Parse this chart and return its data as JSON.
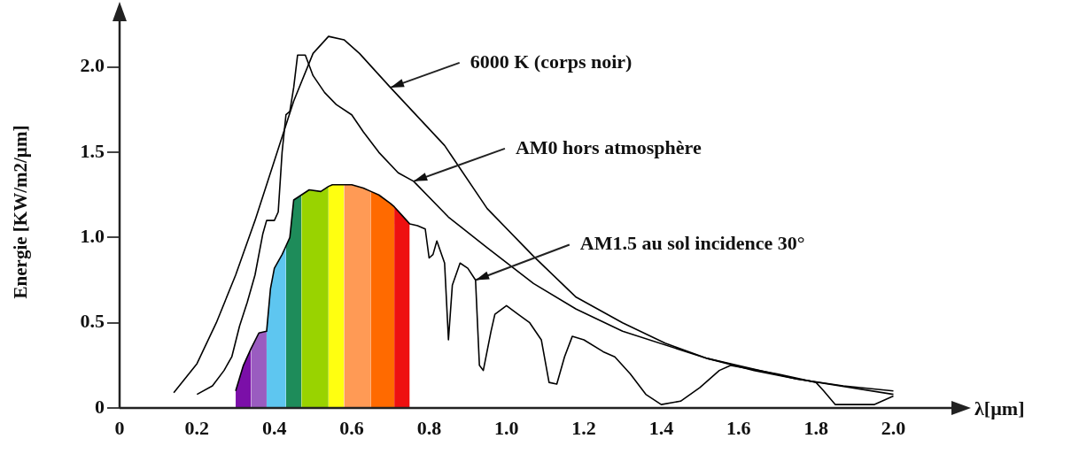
{
  "chart_data": {
    "type": "line",
    "xlabel": "λ[µm]",
    "ylabel": "Energie [KW/m2/µm]",
    "xlim": [
      0,
      2.15
    ],
    "ylim": [
      0,
      2.3
    ],
    "xticks": [
      0,
      0.2,
      0.4,
      0.6,
      0.8,
      {
        "value": 1,
        "label": "1.0"
      },
      1.2,
      1.4,
      1.6,
      1.8,
      {
        "value": 2,
        "label": "2.0"
      }
    ],
    "yticks": [
      0,
      0.5,
      {
        "value": 1,
        "label": "1.0"
      },
      1.5,
      {
        "value": 2,
        "label": "2.0"
      }
    ],
    "series": [
      {
        "color": "#000000",
        "x": [
          0.14,
          0.2,
          0.25,
          0.3,
          0.35,
          0.4,
          0.45,
          0.5,
          0.54,
          0.58,
          0.62,
          0.7,
          0.84,
          0.95,
          1.07,
          1.18,
          1.3,
          1.41,
          1.52,
          1.64,
          1.75,
          1.87,
          2.0
        ],
        "values": [
          0.09,
          0.26,
          0.5,
          0.78,
          1.1,
          1.45,
          1.8,
          2.08,
          2.18,
          2.16,
          2.08,
          1.88,
          1.54,
          1.17,
          0.89,
          0.65,
          0.5,
          0.38,
          0.29,
          0.22,
          0.17,
          0.13,
          0.1
        ]
      },
      {
        "color": "#000000",
        "x": [
          0.2,
          0.24,
          0.27,
          0.29,
          0.31,
          0.33,
          0.35,
          0.37,
          0.38,
          0.4,
          0.41,
          0.42,
          0.43,
          0.44,
          0.45,
          0.46,
          0.48,
          0.5,
          0.53,
          0.56,
          0.6,
          0.63,
          0.67,
          0.72,
          0.76,
          0.85,
          0.95,
          1.07,
          1.18,
          1.3,
          1.52,
          1.75,
          2.0
        ],
        "values": [
          0.08,
          0.13,
          0.22,
          0.3,
          0.48,
          0.62,
          0.78,
          1.02,
          1.1,
          1.1,
          1.15,
          1.5,
          1.72,
          1.74,
          1.88,
          2.07,
          2.07,
          1.95,
          1.85,
          1.78,
          1.72,
          1.62,
          1.5,
          1.38,
          1.33,
          1.12,
          0.94,
          0.73,
          0.58,
          0.45,
          0.29,
          0.17,
          0.08
        ]
      },
      {
        "color": "#000000",
        "x": [
          0.3,
          0.32,
          0.34,
          0.36,
          0.38,
          0.39,
          0.4,
          0.42,
          0.43,
          0.44,
          0.45,
          0.47,
          0.49,
          0.52,
          0.54,
          0.55,
          0.58,
          0.6,
          0.63,
          0.65,
          0.67,
          0.7,
          0.71,
          0.73,
          0.75,
          0.77,
          0.79,
          0.8,
          0.81,
          0.82,
          0.84,
          0.85,
          0.86,
          0.88,
          0.9,
          0.92,
          0.93,
          0.94,
          0.96,
          0.97,
          1.0,
          1.03,
          1.06,
          1.09,
          1.11,
          1.13,
          1.15,
          1.17,
          1.2,
          1.25,
          1.28,
          1.32,
          1.36,
          1.4,
          1.45,
          1.5,
          1.55,
          1.58,
          1.7,
          1.8,
          1.82,
          1.85,
          1.95,
          2.0
        ],
        "values": [
          0.1,
          0.25,
          0.35,
          0.44,
          0.45,
          0.7,
          0.82,
          0.9,
          0.95,
          1.0,
          1.22,
          1.25,
          1.28,
          1.27,
          1.3,
          1.31,
          1.31,
          1.31,
          1.29,
          1.27,
          1.25,
          1.2,
          1.18,
          1.13,
          1.08,
          1.07,
          1.05,
          0.88,
          0.9,
          0.98,
          0.85,
          0.4,
          0.72,
          0.85,
          0.82,
          0.75,
          0.25,
          0.22,
          0.45,
          0.55,
          0.6,
          0.55,
          0.5,
          0.4,
          0.15,
          0.14,
          0.3,
          0.42,
          0.4,
          0.33,
          0.3,
          0.2,
          0.08,
          0.02,
          0.04,
          0.12,
          0.22,
          0.25,
          0.2,
          0.15,
          0.1,
          0.02,
          0.02,
          0.07
        ]
      },
      {
        "type": "area",
        "color": "#7b0fa8",
        "x": [
          0.3,
          0.32,
          0.34
        ],
        "values": [
          0.1,
          0.25,
          0.35
        ]
      },
      {
        "type": "area",
        "color": "#9a5cc0",
        "x": [
          0.34,
          0.36,
          0.38
        ],
        "values": [
          0.35,
          0.44,
          0.45
        ]
      },
      {
        "type": "area",
        "color": "#5ec6f0",
        "x": [
          0.38,
          0.39,
          0.4,
          0.42,
          0.43
        ],
        "values": [
          0.45,
          0.7,
          0.82,
          0.9,
          0.95
        ]
      },
      {
        "type": "area",
        "color": "#1e8c5a",
        "x": [
          0.43,
          0.44,
          0.45,
          0.47
        ],
        "values": [
          0.95,
          1.0,
          1.22,
          1.25
        ]
      },
      {
        "type": "area",
        "color": "#99d300",
        "x": [
          0.47,
          0.49,
          0.52,
          0.54
        ],
        "values": [
          1.25,
          1.28,
          1.27,
          1.3
        ]
      },
      {
        "type": "area",
        "color": "#ffff10",
        "x": [
          0.54,
          0.55,
          0.58
        ],
        "values": [
          1.3,
          1.31,
          1.31
        ]
      },
      {
        "type": "area",
        "color": "#ff9a55",
        "x": [
          0.58,
          0.6,
          0.63,
          0.65
        ],
        "values": [
          1.31,
          1.31,
          1.29,
          1.27
        ]
      },
      {
        "type": "area",
        "color": "#ff6a00",
        "x": [
          0.65,
          0.67,
          0.7,
          0.71
        ],
        "values": [
          1.27,
          1.25,
          1.2,
          1.18
        ]
      },
      {
        "type": "area",
        "color": "#ee1010",
        "x": [
          0.71,
          0.73,
          0.75
        ],
        "values": [
          1.18,
          1.13,
          1.08
        ]
      }
    ],
    "annotations": [
      {
        "text": "6000 K (corps noir)",
        "x": 0.7,
        "y": 1.88
      },
      {
        "text": "AM0 hors atmosphère",
        "x": 0.76,
        "y": 1.33
      },
      {
        "text": "AM1.5 au sol incidence 30°",
        "x": 0.92,
        "y": 0.75
      }
    ]
  }
}
